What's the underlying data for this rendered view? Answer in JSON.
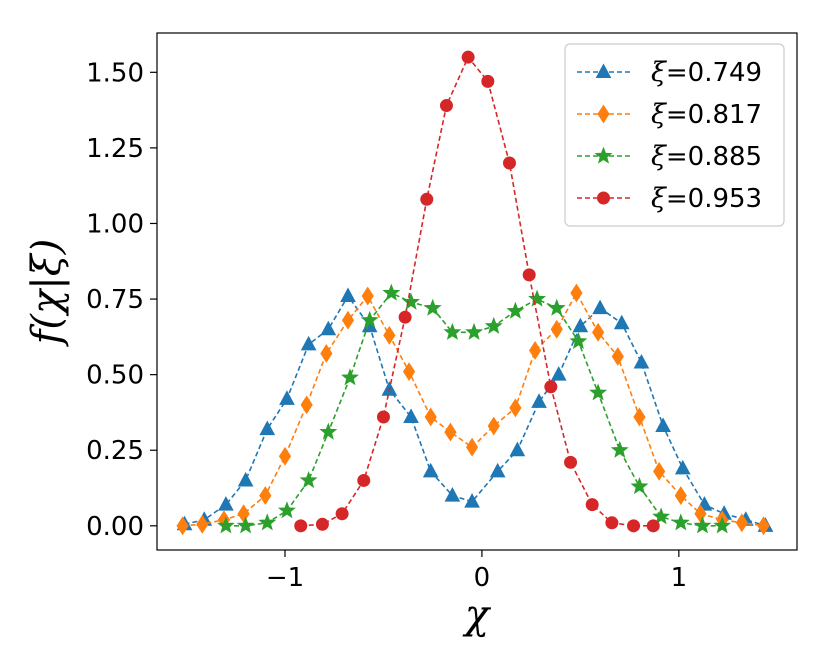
{
  "chart_data": {
    "type": "line",
    "xlabel": "χ",
    "ylabel": "f(χ|ξ)",
    "xlim": [
      -1.65,
      1.6
    ],
    "ylim": [
      -0.08,
      1.63
    ],
    "xticks": [
      -1,
      0,
      1
    ],
    "xtick_labels": [
      "−1",
      "0",
      "1"
    ],
    "yticks": [
      0.0,
      0.25,
      0.5,
      0.75,
      1.0,
      1.25,
      1.5
    ],
    "ytick_labels": [
      "0.00",
      "0.25",
      "0.50",
      "0.75",
      "1.00",
      "1.25",
      "1.50"
    ],
    "grid": false,
    "legend_position": "top-right",
    "series": [
      {
        "name": "ξ=0.749",
        "legend_prefix": "ξ",
        "legend_value": "=0.749",
        "color": "#1f77b4",
        "marker": "triangle",
        "x": [
          -1.51,
          -1.41,
          -1.3,
          -1.2,
          -1.09,
          -0.99,
          -0.88,
          -0.78,
          -0.68,
          -0.57,
          -0.47,
          -0.36,
          -0.26,
          -0.15,
          -0.05,
          0.08,
          0.18,
          0.29,
          0.39,
          0.5,
          0.6,
          0.71,
          0.81,
          0.92,
          1.02,
          1.13,
          1.23,
          1.34,
          1.44
        ],
        "y": [
          0.005,
          0.02,
          0.07,
          0.15,
          0.32,
          0.42,
          0.6,
          0.65,
          0.76,
          0.66,
          0.45,
          0.36,
          0.18,
          0.1,
          0.08,
          0.18,
          0.25,
          0.41,
          0.5,
          0.66,
          0.72,
          0.67,
          0.54,
          0.33,
          0.19,
          0.07,
          0.04,
          0.02,
          0.0
        ]
      },
      {
        "name": "ξ=0.817",
        "legend_prefix": "ξ",
        "legend_value": "=0.817",
        "color": "#ff7f0e",
        "marker": "diamond",
        "x": [
          -1.52,
          -1.42,
          -1.31,
          -1.21,
          -1.1,
          -1.0,
          -0.89,
          -0.79,
          -0.68,
          -0.58,
          -0.47,
          -0.37,
          -0.26,
          -0.16,
          -0.05,
          0.06,
          0.17,
          0.27,
          0.38,
          0.48,
          0.59,
          0.69,
          0.8,
          0.9,
          1.01,
          1.11,
          1.22,
          1.32,
          1.43
        ],
        "y": [
          0.0,
          0.005,
          0.02,
          0.04,
          0.1,
          0.23,
          0.4,
          0.57,
          0.68,
          0.76,
          0.63,
          0.51,
          0.36,
          0.31,
          0.26,
          0.33,
          0.39,
          0.58,
          0.65,
          0.77,
          0.64,
          0.56,
          0.36,
          0.18,
          0.1,
          0.04,
          0.02,
          0.01,
          0.0
        ]
      },
      {
        "name": "ξ=0.885",
        "legend_prefix": "ξ",
        "legend_value": "=0.885",
        "color": "#2ca02c",
        "marker": "star",
        "x": [
          -1.3,
          -1.2,
          -1.09,
          -0.99,
          -0.88,
          -0.78,
          -0.67,
          -0.57,
          -0.46,
          -0.36,
          -0.25,
          -0.15,
          -0.04,
          0.06,
          0.17,
          0.28,
          0.38,
          0.49,
          0.59,
          0.7,
          0.8,
          0.91,
          1.01,
          1.12,
          1.22
        ],
        "y": [
          0.0,
          0.0,
          0.01,
          0.05,
          0.15,
          0.31,
          0.49,
          0.68,
          0.77,
          0.74,
          0.72,
          0.64,
          0.64,
          0.66,
          0.71,
          0.75,
          0.72,
          0.61,
          0.44,
          0.25,
          0.13,
          0.03,
          0.01,
          0.0,
          0.0
        ]
      },
      {
        "name": "ξ=0.953",
        "legend_prefix": "ξ",
        "legend_value": "=0.953",
        "color": "#d62728",
        "marker": "circle",
        "x": [
          -0.92,
          -0.81,
          -0.71,
          -0.6,
          -0.5,
          -0.39,
          -0.28,
          -0.18,
          -0.07,
          0.03,
          0.14,
          0.24,
          0.35,
          0.45,
          0.56,
          0.66,
          0.77,
          0.87
        ],
        "y": [
          0.0,
          0.005,
          0.04,
          0.15,
          0.36,
          0.69,
          1.08,
          1.39,
          1.55,
          1.47,
          1.2,
          0.83,
          0.46,
          0.21,
          0.07,
          0.01,
          0.0,
          0.0
        ]
      }
    ]
  }
}
